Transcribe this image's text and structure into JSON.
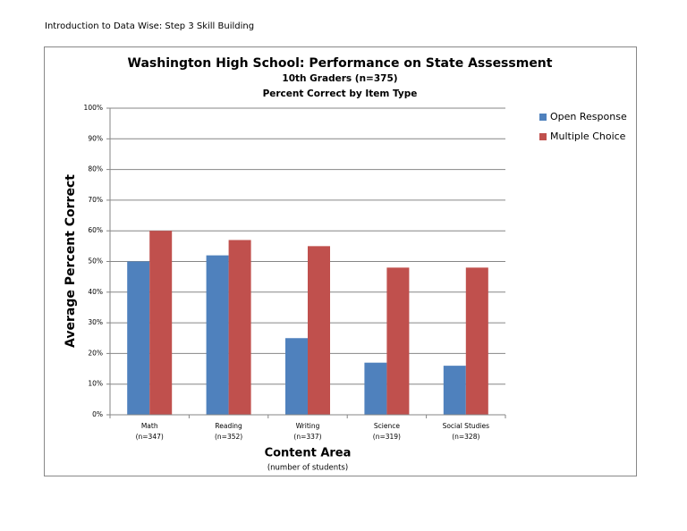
{
  "header": "Introduction to Data Wise: Step 3 Skill Building",
  "chart_data": {
    "type": "bar",
    "title": "Washington High School: Performance on State Assessment",
    "subtitle": "10th Graders (n=375)",
    "subtitle2": "Percent Correct by Item Type",
    "y_label": "Average Percent Correct",
    "x_label": "Content Area",
    "x_note": "(number of students)",
    "categories": [
      "Math",
      "Reading",
      "Writing",
      "Science",
      "Social Studies"
    ],
    "category_counts": [
      "(n=347)",
      "(n=352)",
      "(n=337)",
      "(n=319)",
      "(n=328)"
    ],
    "series": [
      {
        "name": "Open Response",
        "color": "#4f81bd",
        "values": [
          50,
          52,
          25,
          17,
          16
        ]
      },
      {
        "name": "Multiple Choice",
        "color": "#c0504d",
        "values": [
          60,
          57,
          55,
          48,
          48
        ]
      }
    ],
    "ylim": [
      0,
      100
    ],
    "yticks": [
      {
        "value": 0,
        "label": "0%"
      },
      {
        "value": 10,
        "label": "10%"
      },
      {
        "value": 20,
        "label": "20%"
      },
      {
        "value": 30,
        "label": "30%"
      },
      {
        "value": 40,
        "label": "40%"
      },
      {
        "value": 50,
        "label": "50%"
      },
      {
        "value": 60,
        "label": "60%"
      },
      {
        "value": 70,
        "label": "70%"
      },
      {
        "value": 80,
        "label": "80%"
      },
      {
        "value": 90,
        "label": "90%"
      },
      {
        "value": 100,
        "label": "100%"
      }
    ],
    "grid": true,
    "legend": "right"
  }
}
